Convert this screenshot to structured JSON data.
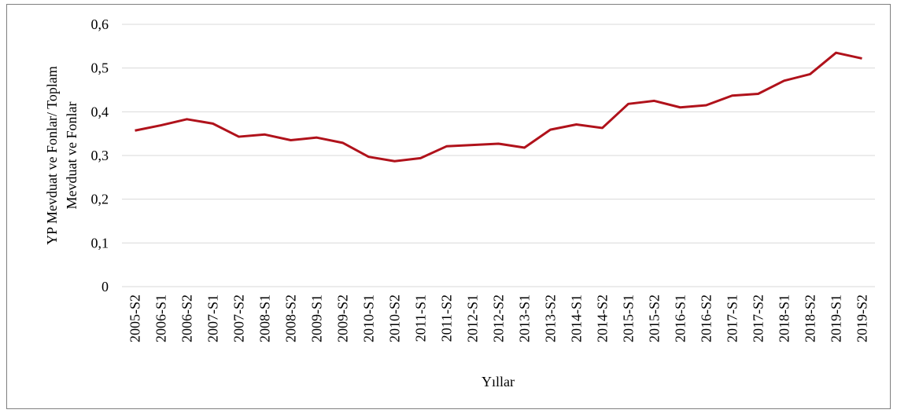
{
  "chart_data": {
    "type": "line",
    "xlabel": "Yıllar",
    "ylabel": [
      "YP Mevduat ve Fonlar/ Toplam",
      "Mevduat ve Fonlar"
    ],
    "categories": [
      "2005-S2",
      "2006-S1",
      "2006-S2",
      "2007-S1",
      "2007-S2",
      "2008-S1",
      "2008-S2",
      "2009-S1",
      "2009-S2",
      "2010-S1",
      "2010-S2",
      "2011-S1",
      "2011-S2",
      "2012-S1",
      "2012-S2",
      "2013-S1",
      "2013-S2",
      "2014-S1",
      "2014-S2",
      "2015-S1",
      "2015-S2",
      "2016-S1",
      "2016-S2",
      "2017-S1",
      "2017-S2",
      "2018-S1",
      "2018-S2",
      "2019-S1",
      "2019-S2"
    ],
    "series": [
      {
        "color": "#b0121b",
        "values": [
          0.357,
          0.369,
          0.383,
          0.373,
          0.343,
          0.348,
          0.335,
          0.341,
          0.329,
          0.297,
          0.287,
          0.294,
          0.321,
          0.324,
          0.327,
          0.318,
          0.359,
          0.371,
          0.363,
          0.418,
          0.425,
          0.41,
          0.415,
          0.437,
          0.441,
          0.471,
          0.486,
          0.535,
          0.522
        ]
      }
    ],
    "ylim": [
      0,
      0.6
    ],
    "yticks": [
      0,
      {
        "value": 0.1,
        "label": "0,1"
      },
      {
        "value": 0.2,
        "label": "0,2"
      },
      {
        "value": 0.3,
        "label": "0,3"
      },
      {
        "value": 0.4,
        "label": "0,4"
      },
      {
        "value": 0.5,
        "label": "0,5"
      },
      {
        "value": 0.6,
        "label": "0,6"
      }
    ],
    "grid": true
  }
}
